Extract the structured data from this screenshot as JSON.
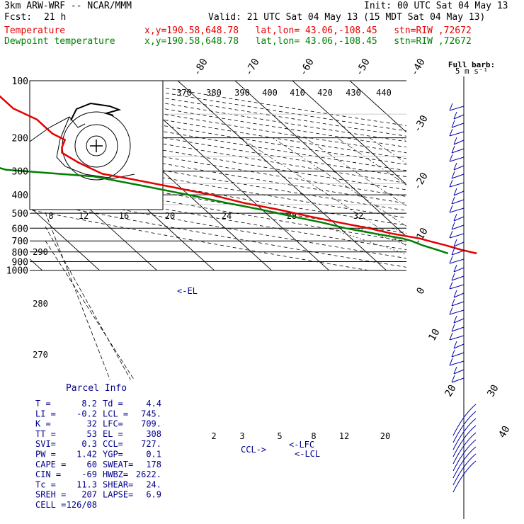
{
  "header": {
    "model": "3km ARW-WRF -- NCAR/MMM",
    "init": "Init: 00 UTC Sat 04 May 13",
    "fcst_label": "Fcst:",
    "fcst_value": "21 h",
    "valid": "Valid: 21 UTC Sat 04 May 13 (15 MDT Sat 04 May 13)",
    "temp_label": "Temperature",
    "temp_info": "x,y=190.58,648.78   lat,lon= 43.06,-108.45   stn=RIW ,72672",
    "dew_label": "Dewpoint temperature",
    "dew_info": "x,y=190.58,648.78   lat,lon= 43.06,-108.45   stn=RIW ,72672"
  },
  "colors": {
    "temperature": "#e60000",
    "dewpoint": "#008000",
    "barbs": "#0000aa",
    "annot": "#00008b"
  },
  "chart_data": {
    "type": "skew-t log-p sounding",
    "pressure_levels": [
      "100",
      "200",
      "300",
      "400",
      "500",
      "600",
      "700",
      "800",
      "900",
      "1000"
    ],
    "isotherm_labels": [
      "-80",
      "-70",
      "-60",
      "-50",
      "-40",
      "-30",
      "-20",
      "-10",
      "0",
      "10",
      "20",
      "30",
      "40"
    ],
    "theta_labels": [
      "370",
      "380",
      "390",
      "400",
      "410",
      "420",
      "430",
      "440"
    ],
    "hodo_speed_labels": [
      "kts",
      "8",
      "12",
      "16",
      "20",
      "24",
      "28",
      "32"
    ],
    "hodo_dir_labels": [
      "290",
      "280",
      "270"
    ],
    "mixing_ratio_labels": [
      "2",
      "3",
      "5",
      "8",
      "12",
      "20"
    ],
    "full_barb_label": "Full barb:",
    "full_barb_value": "5 m s⁻¹",
    "annotations": {
      "el": "<-EL",
      "lfc": "<-LFC",
      "lcl": "<-LCL",
      "ccl": "CCL->"
    },
    "temperature": {
      "name": "Temperature",
      "points": [
        [
          815,
          -1
        ],
        [
          780,
          -3
        ],
        [
          735,
          -5
        ],
        [
          700,
          -7
        ],
        [
          680,
          -8
        ],
        [
          640,
          -12
        ],
        [
          600,
          -15
        ],
        [
          560,
          -19
        ],
        [
          520,
          -23
        ],
        [
          480,
          -27
        ],
        [
          440,
          -32
        ],
        [
          400,
          -36
        ],
        [
          360,
          -42
        ],
        [
          330,
          -47
        ],
        [
          310,
          -51
        ],
        [
          290,
          -52
        ],
        [
          270,
          -53
        ],
        [
          240,
          -54
        ],
        [
          225,
          -53
        ],
        [
          205,
          -51
        ],
        [
          190,
          -52
        ],
        [
          175,
          -52
        ],
        [
          160,
          -52
        ],
        [
          140,
          -54
        ],
        [
          120,
          -54
        ],
        [
          110,
          -55
        ],
        [
          100,
          -55
        ]
      ]
    },
    "dewpoint": {
      "name": "Dewpoint temperature",
      "points": [
        [
          815,
          -6
        ],
        [
          785,
          -7
        ],
        [
          760,
          -8
        ],
        [
          735,
          -9
        ],
        [
          700,
          -10
        ],
        [
          680,
          -11
        ],
        [
          640,
          -15
        ],
        [
          600,
          -19
        ],
        [
          560,
          -22
        ],
        [
          520,
          -26
        ],
        [
          480,
          -30
        ],
        [
          440,
          -35
        ],
        [
          400,
          -40
        ],
        [
          360,
          -46
        ],
        [
          320,
          -53
        ],
        [
          295,
          -67
        ],
        [
          270,
          -70
        ],
        [
          240,
          -70
        ],
        [
          220,
          -69
        ],
        [
          200,
          -69
        ],
        [
          180,
          -68
        ],
        [
          160,
          -71
        ],
        [
          140,
          -71
        ],
        [
          125,
          -69
        ],
        [
          110,
          -68
        ],
        [
          100,
          -68
        ]
      ]
    }
  },
  "parcel_info": {
    "title": "Parcel Info",
    "rows": [
      [
        "T  =",
        "8.2",
        "Td =",
        "4.4"
      ],
      [
        "LI =",
        "-0.2",
        "LCL =",
        "745."
      ],
      [
        "K  =",
        "32",
        "LFC=",
        "709."
      ],
      [
        "TT =",
        "53",
        "EL =",
        "308"
      ],
      [
        "SVI=",
        "0.3",
        "CCL=",
        "727."
      ],
      [
        "PW =",
        "1.42",
        "YGP=",
        "0.1"
      ],
      [
        "CAPE =",
        "60",
        "SWEAT=",
        "178"
      ],
      [
        "CIN =",
        "-69",
        "HWBZ=",
        "2622."
      ],
      [
        "Tc =",
        "11.3",
        "SHEAR=",
        "24."
      ],
      [
        "SREH =",
        "207",
        "LAPSE=",
        "6.9"
      ],
      [
        "CELL =",
        "126/08",
        "",
        ""
      ]
    ]
  }
}
